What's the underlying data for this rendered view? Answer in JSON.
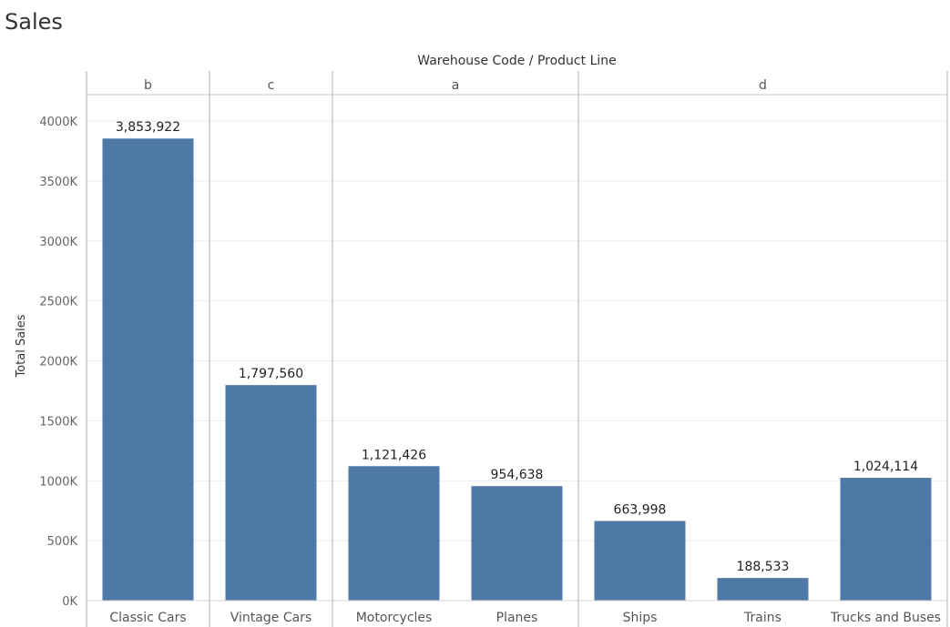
{
  "title": "Sales",
  "header_title": "Warehouse Code / Product Line",
  "chart_data": {
    "type": "bar",
    "ylabel": "Total Sales",
    "ylim": [
      0,
      4000000
    ],
    "y_ticks": [
      {
        "value": 0,
        "label": "0K"
      },
      {
        "value": 500000,
        "label": "500K"
      },
      {
        "value": 1000000,
        "label": "1000K"
      },
      {
        "value": 1500000,
        "label": "1500K"
      },
      {
        "value": 2000000,
        "label": "2000K"
      },
      {
        "value": 2500000,
        "label": "2500K"
      },
      {
        "value": 3000000,
        "label": "3000K"
      },
      {
        "value": 3500000,
        "label": "3500K"
      },
      {
        "value": 4000000,
        "label": "4000K"
      }
    ],
    "groups": [
      {
        "name": "b",
        "categories": [
          "Classic Cars"
        ],
        "values": [
          3853922
        ],
        "labels": [
          "3,853,922"
        ]
      },
      {
        "name": "c",
        "categories": [
          "Vintage Cars"
        ],
        "values": [
          1797560
        ],
        "labels": [
          "1,797,560"
        ]
      },
      {
        "name": "a",
        "categories": [
          "Motorcycles",
          "Planes"
        ],
        "values": [
          1121426,
          954638
        ],
        "labels": [
          "1,121,426",
          "954,638"
        ]
      },
      {
        "name": "d",
        "categories": [
          "Ships",
          "Trains",
          "Trucks and Buses"
        ],
        "values": [
          663998,
          188533,
          1024114
        ],
        "labels": [
          "663,998",
          "188,533",
          "1,024,114"
        ]
      }
    ],
    "bar_color": "#4e79a7",
    "grid": true
  }
}
